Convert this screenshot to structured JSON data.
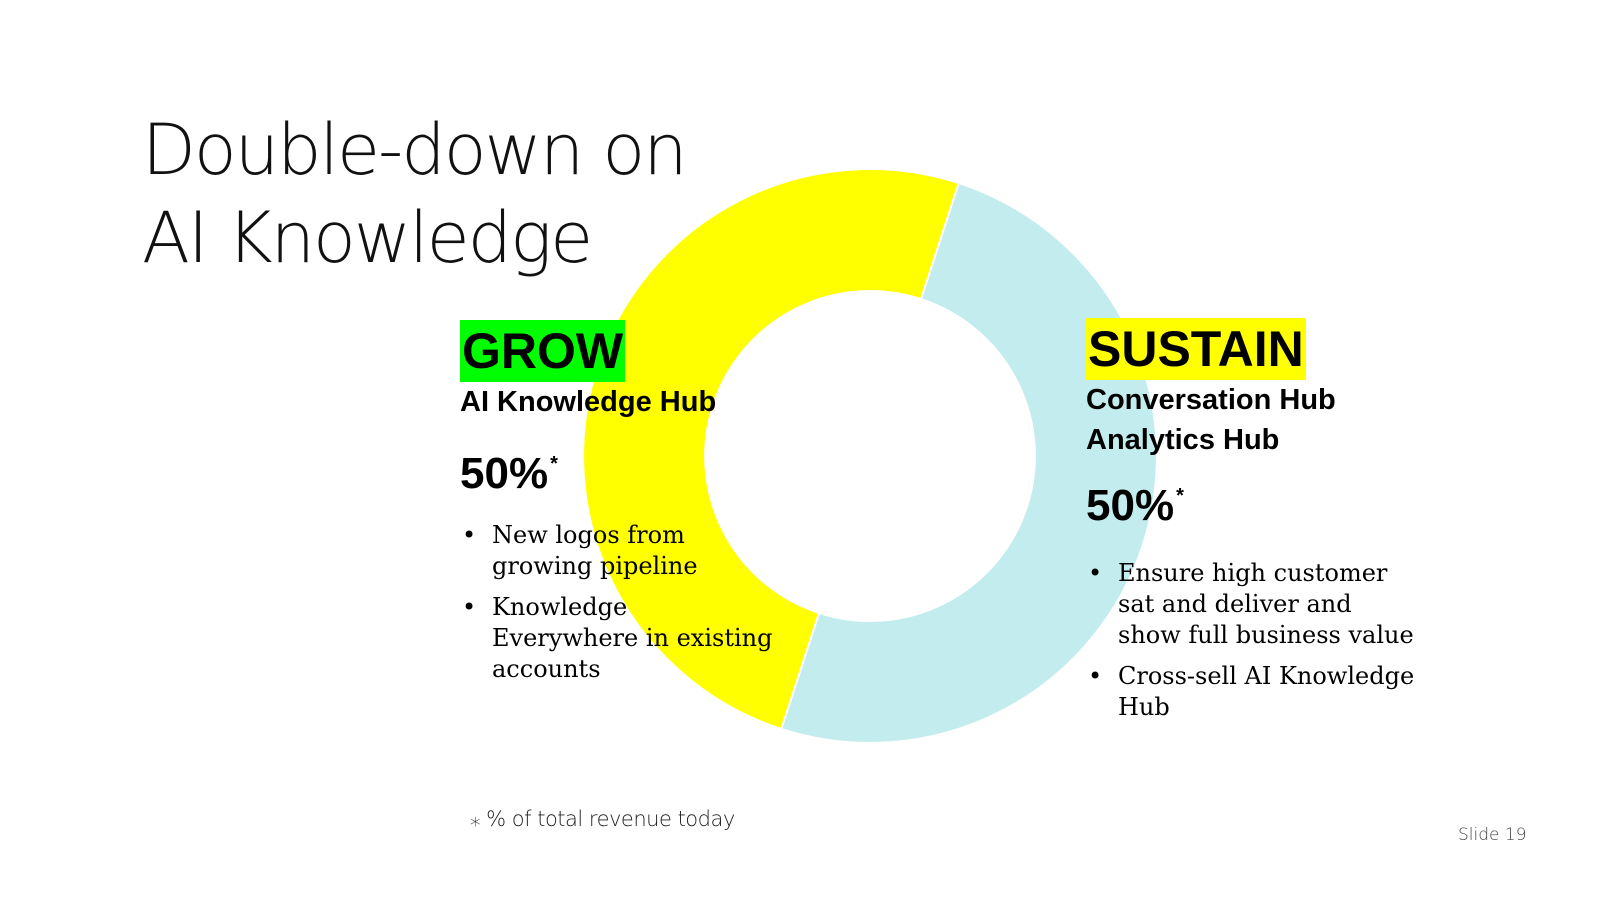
{
  "slide": {
    "title_line1": "Double-down on",
    "title_line2": "AI Knowledge",
    "footnote": "⁎ % of total revenue today",
    "slide_number": "Slide 19"
  },
  "grow": {
    "tag": "GROW",
    "tag_color": "#00ff00",
    "subtitle": "AI Knowledge Hub",
    "percent": "50%",
    "asterisk": "*",
    "bullets": [
      "New logos from growing pipeline",
      "Knowledge Everywhere in existing accounts"
    ]
  },
  "sustain": {
    "tag": "SUSTAIN",
    "tag_color": "#ffff00",
    "subtitle_line1": "Conversation Hub",
    "subtitle_line2": "Analytics Hub",
    "percent": "50%",
    "asterisk": "*",
    "bullets": [
      "Ensure high customer sat and deliver and show full business value",
      "Cross-sell AI Knowledge Hub"
    ]
  },
  "chart_data": {
    "type": "pie",
    "categories": [
      "SUSTAIN",
      "GROW"
    ],
    "values": [
      50,
      50
    ],
    "colors": [
      "#c3ecee",
      "#ffff00"
    ],
    "start_angle_deg": 18,
    "donut": true
  }
}
